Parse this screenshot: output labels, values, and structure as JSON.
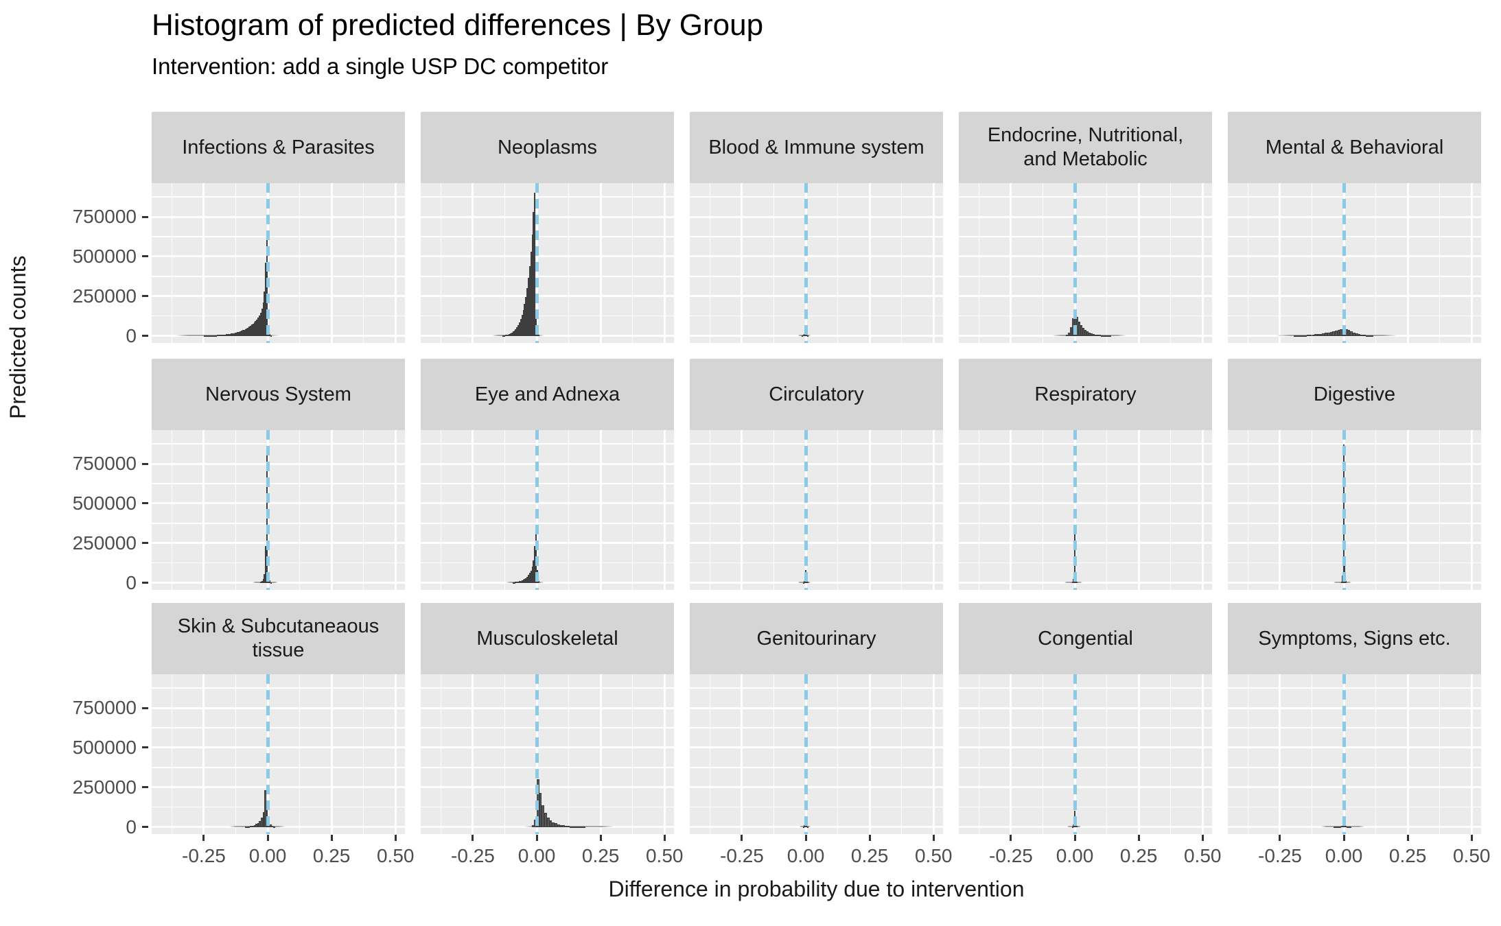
{
  "title": "Histogram of predicted differences | By Group",
  "subtitle": "Intervention: add a single USP DC competitor",
  "chart_data": {
    "type": "bar",
    "variant": "faceted-histograms",
    "title": "Histogram of predicted differences | By Group",
    "subtitle": "Intervention: add a single USP DC competitor",
    "xlabel": "Difference in probability due to intervention",
    "ylabel": "Predicted counts",
    "grid": "on",
    "facet_rows": 3,
    "facet_cols": 5,
    "x_range": [
      -0.454,
      0.537
    ],
    "y_range": [
      -45000,
      962000
    ],
    "x_ticks": {
      "values": [
        -0.25,
        0.0,
        0.25,
        0.5
      ],
      "labels": [
        "-0.25",
        "0.00",
        "0.25",
        "0.50"
      ]
    },
    "y_ticks": {
      "values": [
        0,
        250000,
        500000,
        750000
      ],
      "labels": [
        "0",
        "250000",
        "500000",
        "750000"
      ]
    },
    "x_minor": [
      -0.375,
      -0.125,
      0.125,
      0.375
    ],
    "y_minor": [
      125000,
      375000,
      625000,
      875000
    ],
    "reference_line": {
      "x": 0,
      "style": "dashed",
      "color": "#8bcbe8"
    },
    "colors": {
      "bar_fill": "#595959",
      "bar_edge": "#3e3e3e",
      "panel_bg": "#ebebeb",
      "strip_bg": "#d5d5d5",
      "gridline": "#ffffff",
      "tick_text": "#4d4d4d",
      "text": "#1a1a1a"
    },
    "facets": [
      {
        "label": "Infections & Parasites",
        "bin_start": -0.25,
        "bin_width": 0.005,
        "counts": [
          1500,
          1800,
          2000,
          2200,
          2500,
          2800,
          3100,
          3500,
          3900,
          4300,
          4800,
          5300,
          5900,
          6500,
          7200,
          8000,
          8800,
          9700,
          10700,
          11800,
          13000,
          14400,
          15900,
          17500,
          19300,
          21300,
          23500,
          26000,
          28700,
          31700,
          35000,
          38600,
          42600,
          47000,
          52000,
          57500,
          63500,
          70000,
          77500,
          85500,
          94500,
          104000,
          115000,
          127000,
          145000,
          170000,
          210000,
          280000,
          460000,
          650000,
          60000,
          12000,
          4000
        ],
        "fringe": {
          "from": -0.36,
          "to": 0.05,
          "count": 2500
        }
      },
      {
        "label": "Neoplasms",
        "bin_start": -0.135,
        "bin_width": 0.005,
        "counts": [
          2500,
          3500,
          5000,
          7000,
          9000,
          12000,
          16000,
          21000,
          27000,
          34000,
          43000,
          54000,
          68000,
          85000,
          106000,
          132000,
          163000,
          200000,
          245000,
          300000,
          365000,
          440000,
          530000,
          640000,
          780000,
          900000,
          130000,
          18000,
          5000
        ],
        "fringe": {
          "from": -0.175,
          "to": 0.03,
          "count": 2500
        }
      },
      {
        "label": "Blood & Immune system",
        "bin_start": -0.016,
        "bin_width": 0.004,
        "counts": [
          2000,
          5000,
          12000,
          55000,
          15000,
          3000
        ],
        "fringe": {
          "from": -0.03,
          "to": 0.02,
          "count": 1200
        }
      },
      {
        "label": "Endocrine, Nutritional,\nand Metabolic",
        "bin_start": -0.034,
        "bin_width": 0.008,
        "counts": [
          6000,
          20000,
          55000,
          110000,
          160000,
          118000,
          88000,
          66000,
          49000,
          36000,
          27000,
          20000,
          15000,
          11000,
          8500,
          6500,
          5000,
          3800,
          2900,
          2200,
          1700,
          1300
        ],
        "fringe": {
          "from": -0.09,
          "to": 0.2,
          "count": 2000
        }
      },
      {
        "label": "Mental & Behavioral",
        "bin_start": -0.215,
        "bin_width": 0.01,
        "counts": [
          800,
          1100,
          1500,
          2000,
          2600,
          3300,
          4200,
          5200,
          6400,
          7800,
          9400,
          11000,
          13000,
          15500,
          18000,
          21000,
          24500,
          28000,
          32000,
          36000,
          40000,
          43000,
          41000,
          35000,
          27000,
          20000,
          14500,
          10000,
          7000,
          4800,
          3300,
          2300,
          1600,
          1100,
          800,
          600
        ],
        "fringe": {
          "from": -0.27,
          "to": 0.21,
          "count": 1500
        }
      },
      {
        "label": "Nervous System",
        "bin_start": -0.03,
        "bin_width": 0.005,
        "counts": [
          6000,
          12000,
          25000,
          55000,
          230000,
          860000,
          65000,
          16000,
          4000
        ],
        "fringe": {
          "from": -0.06,
          "to": 0.04,
          "count": 2000
        }
      },
      {
        "label": "Eye and Adnexa",
        "bin_start": -0.095,
        "bin_width": 0.005,
        "counts": [
          3000,
          3800,
          4800,
          6000,
          7500,
          9500,
          12000,
          15000,
          19000,
          24000,
          30000,
          38000,
          48000,
          61000,
          78000,
          100000,
          140000,
          230000,
          330000,
          80000,
          12000
        ],
        "fringe": {
          "from": -0.12,
          "to": 0.03,
          "count": 2000
        }
      },
      {
        "label": "Circulatory",
        "bin_start": -0.012,
        "bin_width": 0.004,
        "counts": [
          4000,
          12000,
          80000,
          22000,
          5000
        ],
        "fringe": {
          "from": -0.03,
          "to": 0.02,
          "count": 1200
        }
      },
      {
        "label": "Respiratory",
        "bin_start": -0.012,
        "bin_width": 0.004,
        "counts": [
          6000,
          25000,
          340000,
          55000,
          8000
        ],
        "fringe": {
          "from": -0.04,
          "to": 0.03,
          "count": 1500
        }
      },
      {
        "label": "Digestive",
        "bin_start": -0.012,
        "bin_width": 0.004,
        "counts": [
          8000,
          45000,
          870000,
          110000,
          12000
        ],
        "fringe": {
          "from": -0.04,
          "to": 0.03,
          "count": 1500
        }
      },
      {
        "label": "Skin & Subcutaneaous\ntissue",
        "bin_start": -0.09,
        "bin_width": 0.007,
        "counts": [
          2000,
          3000,
          4500,
          6500,
          9000,
          13000,
          18000,
          26000,
          38000,
          58000,
          95000,
          230000,
          135000,
          50000,
          16000,
          6000,
          2500
        ],
        "fringe": {
          "from": -0.15,
          "to": 0.07,
          "count": 2000
        }
      },
      {
        "label": "Musculoskeletal",
        "bin_start": -0.02,
        "bin_width": 0.01,
        "counts": [
          10000,
          45000,
          300000,
          215000,
          135000,
          88000,
          60000,
          42000,
          30000,
          22000,
          16500,
          12500,
          9500,
          7500,
          5800,
          4600,
          3600,
          2900,
          2300,
          1900,
          1500,
          1200,
          1000,
          850,
          700,
          600,
          500,
          450
        ],
        "fringe": {
          "from": -0.05,
          "to": 0.3,
          "count": 1800
        }
      },
      {
        "label": "Genitourinary",
        "bin_start": -0.012,
        "bin_width": 0.004,
        "counts": [
          3000,
          10000,
          60000,
          16000,
          3000
        ],
        "fringe": {
          "from": -0.025,
          "to": 0.02,
          "count": 1200
        }
      },
      {
        "label": "Congential",
        "bin_start": -0.012,
        "bin_width": 0.004,
        "counts": [
          4000,
          14000,
          100000,
          26000,
          5000
        ],
        "fringe": {
          "from": -0.03,
          "to": 0.025,
          "count": 1300
        }
      },
      {
        "label": "Symptoms, Signs etc.",
        "bin_start": -0.05,
        "bin_width": 0.01,
        "counts": [
          800,
          1500,
          2800,
          4500,
          7500,
          5500,
          3000,
          1500,
          800
        ],
        "fringe": {
          "from": -0.09,
          "to": 0.08,
          "count": 1200
        }
      }
    ]
  }
}
